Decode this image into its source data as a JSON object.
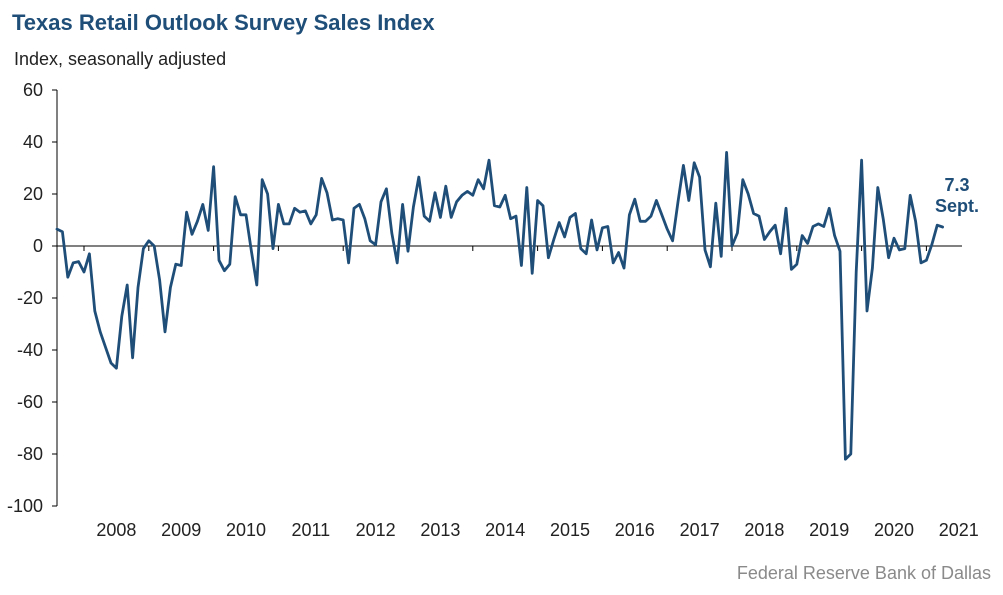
{
  "chart_data": {
    "type": "line",
    "title": "Texas Retail Outlook Survey Sales Index",
    "subtitle": "Index, seasonally adjusted",
    "source": "Federal Reserve Bank of Dallas",
    "x_start": "2007-08",
    "x_tick_labels": [
      "2008",
      "2009",
      "2010",
      "2011",
      "2012",
      "2013",
      "2014",
      "2015",
      "2016",
      "2017",
      "2018",
      "2019",
      "2020",
      "2021"
    ],
    "y_ticks": [
      60,
      40,
      20,
      0,
      -20,
      -40,
      -60,
      -80,
      -100
    ],
    "ylim": [
      -100,
      60
    ],
    "grid": false,
    "line_color": "#1f4e79",
    "annotation": {
      "value": "7.3",
      "label": "Sept."
    },
    "series": [
      {
        "values": [
          6.5,
          5.5,
          -12,
          -6.5,
          -6,
          -10,
          -3,
          -25,
          -33,
          -39,
          -45,
          -47,
          -27,
          -15,
          -43,
          -16,
          -1,
          2,
          0,
          -13,
          -33,
          -16,
          -7,
          -7.5,
          13,
          4.5,
          9.5,
          16,
          6,
          30.5,
          -5.5,
          -9.5,
          -7,
          19,
          12,
          12,
          -2,
          -15,
          25.5,
          20,
          -1,
          16,
          8.5,
          8.5,
          14.5,
          13,
          13.5,
          8.5,
          12,
          26,
          20.5,
          10,
          10.5,
          10,
          -6.5,
          14.5,
          16,
          10.5,
          2,
          0.5,
          17,
          22,
          5,
          -6.5,
          16,
          -2,
          15,
          26.5,
          11.5,
          9.5,
          20.5,
          11,
          23,
          11,
          17,
          19.5,
          21,
          19.5,
          25.5,
          22,
          33,
          15.5,
          15,
          19.5,
          10.5,
          11.5,
          -7.5,
          22.5,
          -10.5,
          17.5,
          15.5,
          -4.5,
          2.5,
          9,
          3.5,
          11,
          12.5,
          -1,
          -3,
          10,
          -1.5,
          7,
          7.5,
          -6.5,
          -2.5,
          -8.5,
          12,
          18,
          9.5,
          9.5,
          11.5,
          17.5,
          12,
          6.5,
          2,
          17,
          31,
          17.5,
          32,
          26.5,
          -1.5,
          -8,
          16.5,
          -4,
          36,
          0,
          5,
          25.5,
          20,
          12.5,
          11.5,
          2.5,
          5.5,
          8,
          -3,
          14.5,
          -9,
          -7,
          4,
          1,
          7.5,
          8.5,
          7.5,
          14.5,
          4,
          -2,
          -82,
          -80,
          -10,
          33,
          -25,
          -8.5,
          22.5,
          10.5,
          -4.5,
          3,
          -1.5,
          -1,
          19.5,
          9.5,
          -6.5,
          -5.5,
          0.5,
          8,
          7.3
        ]
      }
    ]
  }
}
